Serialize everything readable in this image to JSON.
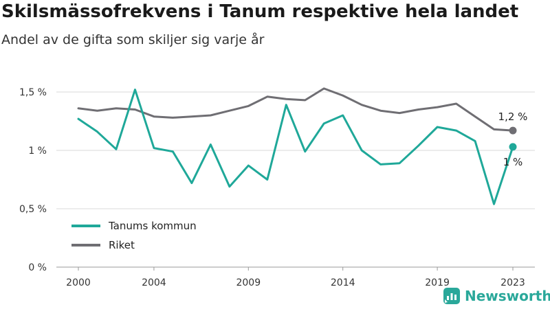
{
  "header": {
    "title": "Skilsmässofrekvens i Tanum respektive hela landet",
    "subtitle": "Andel av de gifta som skiljer sig varje år"
  },
  "brand": {
    "name": "Newsworthy",
    "icon": "newsworthy-logo-icon"
  },
  "colors": {
    "tanum": "#1fa899",
    "riket": "#6f6e73",
    "grid": "#d9d9d9"
  },
  "chart_data": {
    "type": "line",
    "x": [
      2000,
      2001,
      2002,
      2003,
      2004,
      2005,
      2006,
      2007,
      2008,
      2009,
      2010,
      2011,
      2012,
      2013,
      2014,
      2015,
      2016,
      2017,
      2018,
      2019,
      2020,
      2021,
      2022,
      2023
    ],
    "xticks": [
      2000,
      2004,
      2009,
      2014,
      2019,
      2023
    ],
    "xtick_labels": [
      "2000",
      "2004",
      "2009",
      "2014",
      "2019",
      "2023"
    ],
    "yticks": [
      0,
      0.5,
      1,
      1.5
    ],
    "ytick_labels": [
      "0 %",
      "0,5 %",
      "1 %",
      "1,5 %"
    ],
    "ylim": [
      0,
      1.5
    ],
    "grid": true,
    "legend_position": "bottom-left",
    "series": [
      {
        "name": "Tanums kommun",
        "color": "#1fa899",
        "values": [
          1.27,
          1.16,
          1.01,
          1.52,
          1.02,
          0.99,
          0.72,
          1.05,
          0.69,
          0.87,
          0.75,
          1.39,
          0.99,
          1.23,
          1.3,
          1.0,
          0.88,
          0.89,
          1.04,
          1.2,
          1.17,
          1.08,
          0.54,
          1.03
        ],
        "end_label": "1 %"
      },
      {
        "name": "Riket",
        "color": "#6f6e73",
        "values": [
          1.36,
          1.34,
          1.36,
          1.35,
          1.29,
          1.28,
          1.29,
          1.3,
          1.34,
          1.38,
          1.46,
          1.44,
          1.43,
          1.53,
          1.47,
          1.39,
          1.34,
          1.32,
          1.35,
          1.37,
          1.4,
          1.29,
          1.18,
          1.17
        ],
        "end_label": "1,2 %"
      }
    ]
  }
}
